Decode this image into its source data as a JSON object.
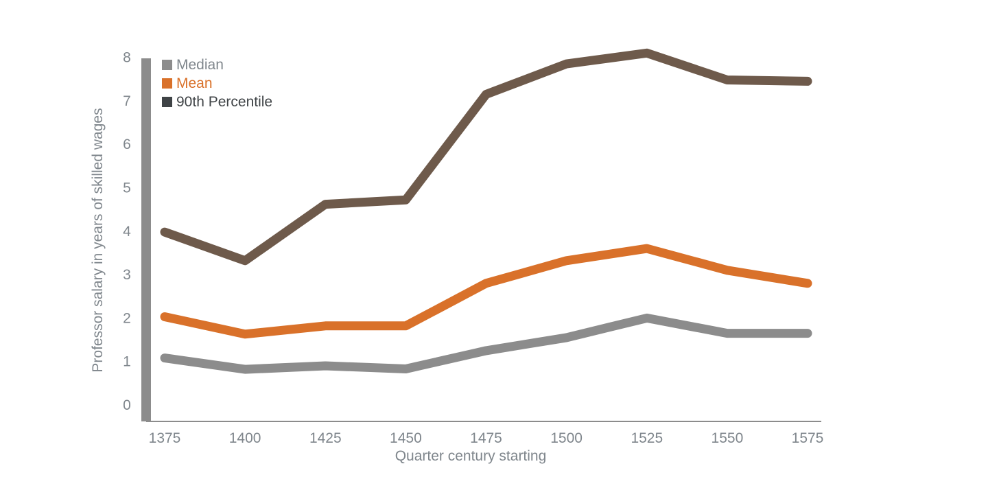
{
  "chart_data": {
    "type": "line",
    "title": "",
    "xlabel": "Quarter century starting",
    "ylabel": "Professor salary in years of skilled wages",
    "categories": [
      "1375",
      "1400",
      "1425",
      "1450",
      "1475",
      "1500",
      "1525",
      "1550",
      "1575"
    ],
    "y_ticks": [
      "0",
      "1",
      "2",
      "3",
      "4",
      "5",
      "6",
      "7",
      "8"
    ],
    "ylim": [
      0,
      8.3
    ],
    "grid": false,
    "legend_position": "top-left",
    "series": [
      {
        "name": "Median",
        "color": "#8c8c8c",
        "values": [
          1.08,
          0.82,
          0.9,
          0.83,
          1.25,
          1.55,
          2.0,
          1.65,
          1.65
        ]
      },
      {
        "name": "Mean",
        "color": "#d9712a",
        "values": [
          2.03,
          1.63,
          1.82,
          1.82,
          2.8,
          3.32,
          3.6,
          3.1,
          2.8
        ]
      },
      {
        "name": "90th Percentile",
        "color": "#6e5a4b",
        "values": [
          3.98,
          3.32,
          4.62,
          4.72,
          7.15,
          7.85,
          8.1,
          7.48,
          7.45
        ]
      }
    ],
    "legend": {
      "swatch_colors": [
        "#8c8c8c",
        "#d9712a",
        "#3f4346"
      ],
      "label_colors": [
        "#7f868c",
        "#d9712a",
        "#3f4346"
      ]
    },
    "colors": {
      "axis": "#8c8c8c",
      "tick_text": "#7f868c"
    }
  }
}
